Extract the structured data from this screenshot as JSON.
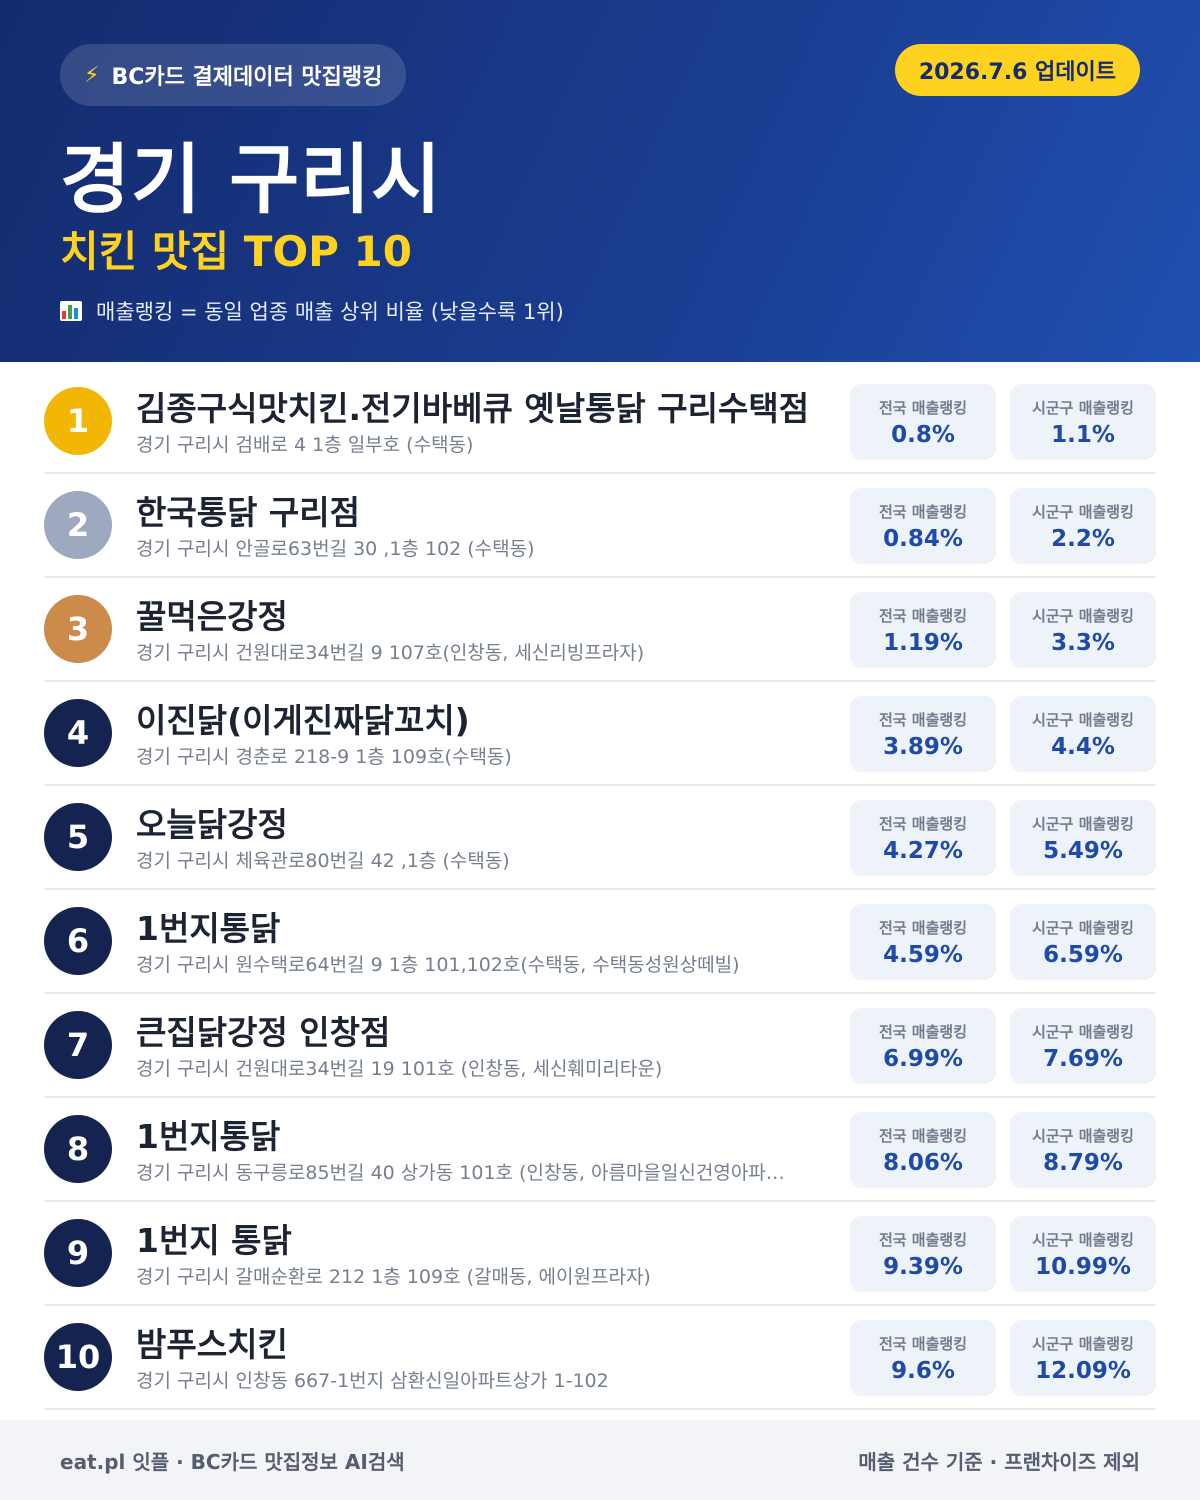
{
  "header": {
    "badge_icon": "⚡",
    "badge_text": "BC카드 결제데이터 맛집랭킹",
    "update": "2026.7.6 업데이트",
    "title": "경기 구리시",
    "subtitle": "치킨 맛집 TOP 10",
    "note_icon": "chart-icon",
    "note": "매출랭킹 = 동일 업종 매출 상위 비율 (낮을수록 1위)"
  },
  "labels": {
    "national": "전국 매출랭킹",
    "regional": "시군구 매출랭킹"
  },
  "rank_colors": {
    "1": "#f2b705",
    "2": "#9ea8bf",
    "3": "#cc8a4b",
    "default": "#14234f"
  },
  "items": [
    {
      "rank": "1",
      "name": "김종구식맛치킨.전기바베큐 옛날통닭 구리수택점",
      "address": "경기 구리시 검배로 4 1층 일부호 (수택동)",
      "national": "0.8%",
      "regional": "1.1%"
    },
    {
      "rank": "2",
      "name": "한국통닭 구리점",
      "address": "경기 구리시 안골로63번길 30 ,1층 102 (수택동)",
      "national": "0.84%",
      "regional": "2.2%"
    },
    {
      "rank": "3",
      "name": "꿀먹은강정",
      "address": "경기 구리시 건원대로34번길 9 107호(인창동, 세신리빙프라자)",
      "national": "1.19%",
      "regional": "3.3%"
    },
    {
      "rank": "4",
      "name": "이진닭(이게진짜닭꼬치)",
      "address": "경기 구리시 경춘로 218-9 1층 109호(수택동)",
      "national": "3.89%",
      "regional": "4.4%"
    },
    {
      "rank": "5",
      "name": "오늘닭강정",
      "address": "경기 구리시 체육관로80번길 42 ,1층 (수택동)",
      "national": "4.27%",
      "regional": "5.49%"
    },
    {
      "rank": "6",
      "name": "1번지통닭",
      "address": "경기 구리시 원수택로64번길 9 1층 101,102호(수택동, 수택동성원상떼빌)",
      "national": "4.59%",
      "regional": "6.59%"
    },
    {
      "rank": "7",
      "name": "큰집닭강정 인창점",
      "address": "경기 구리시 건원대로34번길 19 101호 (인창동, 세신훼미리타운)",
      "national": "6.99%",
      "regional": "7.69%"
    },
    {
      "rank": "8",
      "name": "1번지통닭",
      "address": "경기 구리시 동구릉로85번길 40 상가동 101호 (인창동, 아름마을일신건영아파…",
      "national": "8.06%",
      "regional": "8.79%"
    },
    {
      "rank": "9",
      "name": "1번지 통닭",
      "address": "경기 구리시 갈매순환로 212 1층 109호 (갈매동, 에이원프라자)",
      "national": "9.39%",
      "regional": "10.99%"
    },
    {
      "rank": "10",
      "name": "밤푸스치킨",
      "address": "경기 구리시 인창동 667-1번지 삼환신일아파트상가 1-102",
      "national": "9.6%",
      "regional": "12.09%"
    }
  ],
  "footer": {
    "left": "eat.pl 잇플 · BC카드 맛집정보 AI검색",
    "right": "매출 건수 기준 · 프랜차이즈 제외"
  }
}
